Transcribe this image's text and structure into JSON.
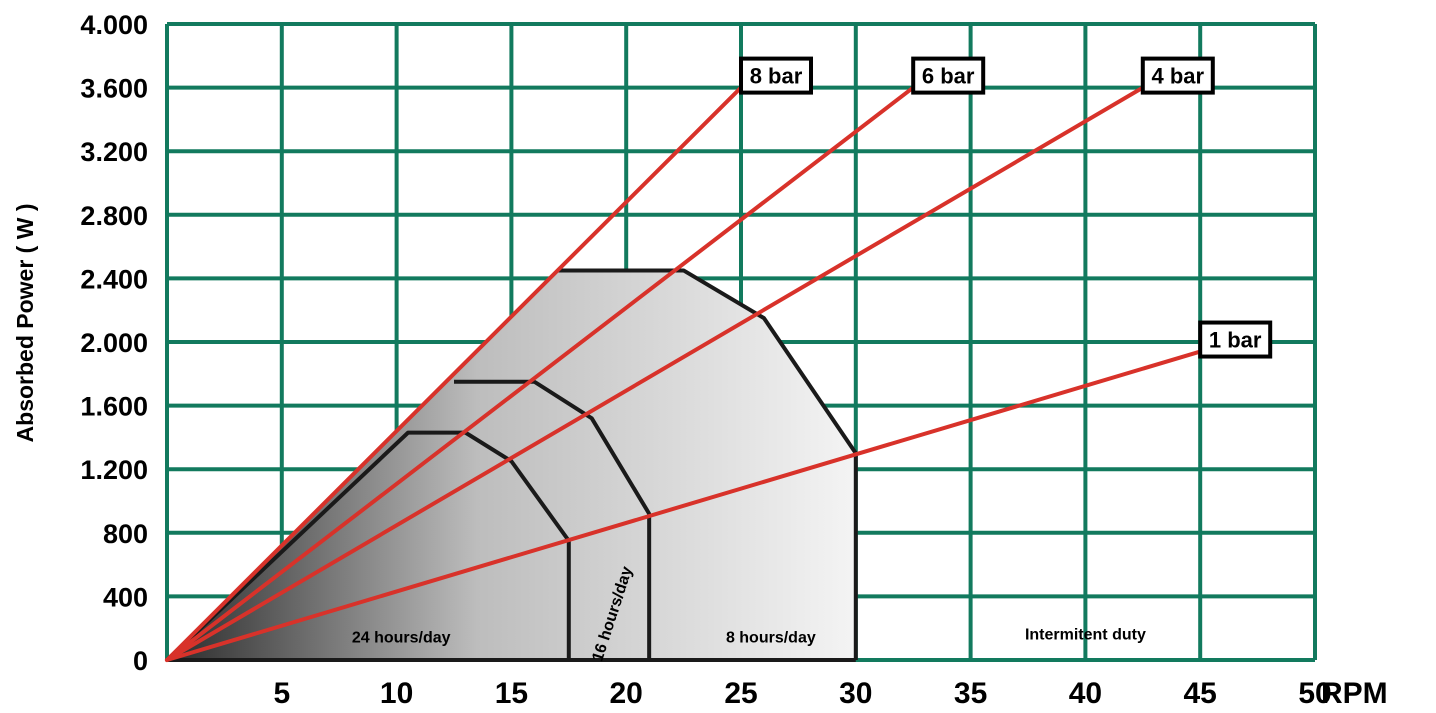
{
  "chart_data": {
    "type": "line",
    "title": "",
    "xlabel": "RPM",
    "ylabel": "Absorbed Power ( W )",
    "xlim": [
      0,
      50
    ],
    "ylim": [
      0,
      4000
    ],
    "grid": true,
    "x_ticks": [
      {
        "value": 5,
        "label": "5"
      },
      {
        "value": 10,
        "label": "10"
      },
      {
        "value": 15,
        "label": "15"
      },
      {
        "value": 20,
        "label": "20"
      },
      {
        "value": 25,
        "label": "25"
      },
      {
        "value": 30,
        "label": "30"
      },
      {
        "value": 35,
        "label": "35"
      },
      {
        "value": 40,
        "label": "40"
      },
      {
        "value": 45,
        "label": "45"
      },
      {
        "value": 50,
        "label": "50"
      }
    ],
    "y_ticks": [
      {
        "value": 0,
        "label": "0"
      },
      {
        "value": 400,
        "label": "400"
      },
      {
        "value": 800,
        "label": "800"
      },
      {
        "value": 1200,
        "label": "1.200"
      },
      {
        "value": 1600,
        "label": "1.600"
      },
      {
        "value": 2000,
        "label": "2.000"
      },
      {
        "value": 2400,
        "label": "2.400"
      },
      {
        "value": 2800,
        "label": "2.800"
      },
      {
        "value": 3200,
        "label": "3.200"
      },
      {
        "value": 3600,
        "label": "3.600"
      },
      {
        "value": 4000,
        "label": "4.000"
      }
    ],
    "series": [
      {
        "name": "8 bar",
        "color": "#d8322a",
        "points": [
          [
            0,
            0
          ],
          [
            25,
            3600
          ]
        ]
      },
      {
        "name": "6 bar",
        "color": "#d8322a",
        "points": [
          [
            0,
            0
          ],
          [
            32.5,
            3600
          ]
        ]
      },
      {
        "name": "4 bar",
        "color": "#d8322a",
        "points": [
          [
            0,
            0
          ],
          [
            42.5,
            3600
          ]
        ]
      },
      {
        "name": "1 bar",
        "color": "#d8322a",
        "points": [
          [
            0,
            0
          ],
          [
            45,
            1940
          ]
        ]
      }
    ],
    "regions": [
      {
        "name": "24 hours/day",
        "boundary": [
          [
            0,
            0
          ],
          [
            10.5,
            1430
          ],
          [
            13,
            1430
          ],
          [
            15,
            1250
          ],
          [
            17.5,
            750
          ],
          [
            17.5,
            0
          ]
        ]
      },
      {
        "name": "16 hours/day",
        "boundary": [
          [
            12.5,
            1750
          ],
          [
            16,
            1750
          ],
          [
            18.5,
            1520
          ],
          [
            21,
            920
          ],
          [
            21,
            0
          ]
        ]
      },
      {
        "name": "8 hours/day",
        "boundary": [
          [
            17,
            2450
          ],
          [
            22.5,
            2450
          ],
          [
            26,
            2150
          ],
          [
            30,
            1300
          ],
          [
            30,
            0
          ]
        ]
      },
      {
        "name": "Intermitent duty"
      }
    ],
    "colors": {
      "grid": "#127a5e",
      "lines": "#d8322a",
      "boundary": "#1a1a1a"
    }
  }
}
